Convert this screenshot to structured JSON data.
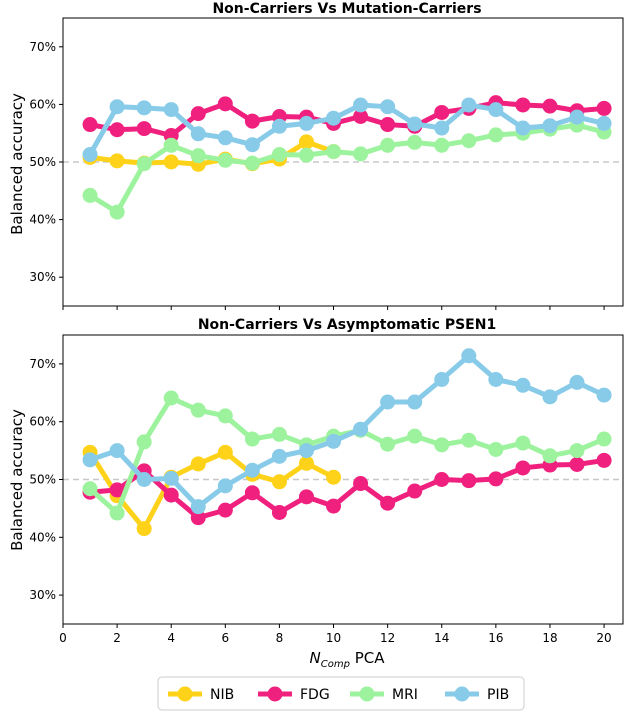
{
  "chart_data": [
    {
      "type": "line",
      "title": "Non-Carriers Vs Mutation-Carriers",
      "ylabel": "Balanced accuracy",
      "xlabel": "",
      "xlim": [
        0,
        20.7
      ],
      "ylim": [
        25,
        75
      ],
      "yticks": [
        30,
        40,
        50,
        60,
        70
      ],
      "ytick_labels": [
        "30%",
        "40%",
        "50%",
        "60%",
        "70%"
      ],
      "xticks": [
        0,
        2,
        4,
        6,
        8,
        10,
        12,
        14,
        16,
        18,
        20
      ],
      "xtick_labels": [],
      "reference_line": 50,
      "series": [
        {
          "name": "NIB",
          "color": "#FFD21A",
          "x": [
            1,
            2,
            3,
            4,
            5,
            6,
            7,
            8,
            9,
            10
          ],
          "y": [
            50.8,
            50.2,
            49.8,
            50.0,
            49.6,
            50.5,
            49.7,
            50.5,
            53.5,
            51.8
          ]
        },
        {
          "name": "FDG",
          "color": "#F0207E",
          "x": [
            1,
            2,
            3,
            4,
            5,
            6,
            7,
            8,
            9,
            10,
            11,
            12,
            13,
            14,
            15,
            16,
            17,
            18,
            19,
            20
          ],
          "y": [
            56.5,
            55.6,
            55.8,
            54.6,
            58.4,
            60.1,
            57.1,
            57.9,
            57.8,
            56.7,
            57.9,
            56.5,
            56.2,
            58.6,
            59.3,
            60.3,
            59.9,
            59.7,
            58.9,
            59.3
          ]
        },
        {
          "name": "MRI",
          "color": "#9DF39D",
          "x": [
            1,
            2,
            3,
            4,
            5,
            6,
            7,
            8,
            9,
            10,
            11,
            12,
            13,
            14,
            15,
            16,
            17,
            18,
            19,
            20
          ],
          "y": [
            44.2,
            41.3,
            49.7,
            52.9,
            51.1,
            50.3,
            49.8,
            51.3,
            51.2,
            51.8,
            51.4,
            52.9,
            53.4,
            52.9,
            53.7,
            54.7,
            55.0,
            55.7,
            56.4,
            55.2
          ]
        },
        {
          "name": "PIB",
          "color": "#87CBE9",
          "x": [
            1,
            2,
            3,
            4,
            5,
            6,
            7,
            8,
            9,
            10,
            11,
            12,
            13,
            14,
            15,
            16,
            17,
            18,
            19,
            20
          ],
          "y": [
            51.3,
            59.6,
            59.4,
            59.1,
            54.9,
            54.2,
            53.0,
            56.2,
            56.7,
            57.6,
            59.9,
            59.6,
            56.6,
            55.9,
            59.9,
            59.1,
            55.9,
            56.3,
            57.8,
            56.7
          ]
        }
      ]
    },
    {
      "type": "line",
      "title": "Non-Carriers Vs Asymptomatic PSEN1",
      "ylabel": "Balanced accuracy",
      "xlim": [
        0,
        20.7
      ],
      "ylim": [
        25,
        75
      ],
      "yticks": [
        30,
        40,
        50,
        60,
        70
      ],
      "ytick_labels": [
        "30%",
        "40%",
        "50%",
        "60%",
        "70%"
      ],
      "xticks": [
        0,
        2,
        4,
        6,
        8,
        10,
        12,
        14,
        16,
        18,
        20
      ],
      "xtick_labels": [
        "0",
        "2",
        "4",
        "6",
        "8",
        "10",
        "12",
        "14",
        "16",
        "18",
        "20"
      ],
      "xlabel_main": "N",
      "xlabel_sub": "Comp",
      "xlabel_rest": " PCA",
      "reference_line": 50,
      "series": [
        {
          "name": "NIB",
          "color": "#FFD21A",
          "x": [
            1,
            2,
            3,
            4,
            5,
            6,
            7,
            8,
            9,
            10
          ],
          "y": [
            54.7,
            47.2,
            41.5,
            50.4,
            52.7,
            54.7,
            50.9,
            49.6,
            52.8,
            50.4
          ]
        },
        {
          "name": "FDG",
          "color": "#F0207E",
          "x": [
            1,
            2,
            3,
            4,
            5,
            6,
            7,
            8,
            9,
            10,
            11,
            12,
            13,
            14,
            15,
            16,
            17,
            18,
            19,
            20
          ],
          "y": [
            47.8,
            48.2,
            51.5,
            47.3,
            43.4,
            44.7,
            47.7,
            44.3,
            47.0,
            45.4,
            49.3,
            45.9,
            48.0,
            50.0,
            49.8,
            50.1,
            52.0,
            52.5,
            52.6,
            53.3
          ]
        },
        {
          "name": "MRI",
          "color": "#9DF39D",
          "x": [
            1,
            2,
            3,
            4,
            5,
            6,
            7,
            8,
            9,
            10,
            11,
            12,
            13,
            14,
            15,
            16,
            17,
            18,
            19,
            20
          ],
          "y": [
            48.4,
            44.2,
            56.5,
            64.1,
            62.0,
            61.0,
            57.0,
            57.8,
            56.0,
            57.5,
            58.5,
            56.1,
            57.5,
            56.0,
            56.8,
            55.2,
            56.3,
            54.1,
            55.0,
            57.0
          ]
        },
        {
          "name": "PIB",
          "color": "#87CBE9",
          "x": [
            1,
            2,
            3,
            4,
            5,
            6,
            7,
            8,
            9,
            10,
            11,
            12,
            13,
            14,
            15,
            16,
            17,
            18,
            19,
            20
          ],
          "y": [
            53.4,
            55.0,
            50.0,
            50.2,
            45.3,
            48.9,
            51.6,
            54.0,
            55.0,
            56.6,
            58.7,
            63.4,
            63.4,
            67.3,
            71.4,
            67.3,
            66.3,
            64.3,
            66.8,
            64.6
          ]
        }
      ]
    }
  ],
  "legend": {
    "placement": "bottom-center",
    "entries": [
      {
        "label": "NIB",
        "color": "#FFD21A"
      },
      {
        "label": "FDG",
        "color": "#F0207E"
      },
      {
        "label": "MRI",
        "color": "#9DF39D"
      },
      {
        "label": "PIB",
        "color": "#87CBE9"
      }
    ]
  }
}
